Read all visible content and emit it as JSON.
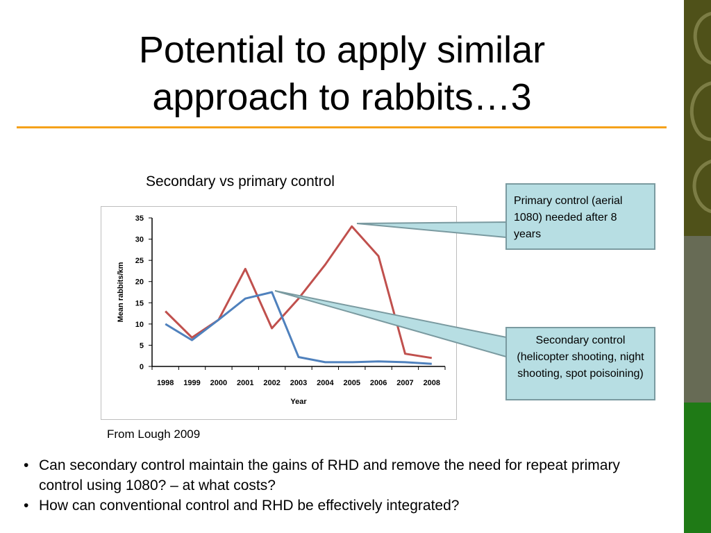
{
  "slide": {
    "title_line1": "Potential to apply similar",
    "title_line2": "approach to rabbits…3",
    "source": "From Lough 2009",
    "colors": {
      "accent_rule": "#f5a11a",
      "callout_fill": "#b7dee3"
    }
  },
  "callouts": {
    "primary": "Primary control (aerial 1080) needed after 8 years",
    "secondary": "Secondary control (helicopter shooting, night shooting, spot poisoining)"
  },
  "bullets": [
    "Can secondary control maintain the gains of RHD and remove the need for repeat primary control using 1080? – at what costs?",
    "How can conventional control and RHD be effectively integrated?"
  ],
  "chart_data": {
    "type": "line",
    "title": "Secondary vs primary control",
    "xlabel": "Year",
    "ylabel": "Mean rabbits/km",
    "categories": [
      "1998",
      "1999",
      "2000",
      "2001",
      "2002",
      "2003",
      "2004",
      "2005",
      "2006",
      "2007",
      "2008"
    ],
    "ylim": [
      0,
      35
    ],
    "yticks": [
      0,
      5,
      10,
      15,
      20,
      25,
      30,
      35
    ],
    "grid": false,
    "legend": "none",
    "series": [
      {
        "color": "#c0504d",
        "values": [
          13,
          6.8,
          11,
          23,
          9,
          16,
          24,
          33,
          26,
          3,
          2
        ]
      },
      {
        "color": "#4f81bd",
        "values": [
          10,
          6.2,
          11,
          16,
          17.5,
          2.2,
          1,
          1,
          1.2,
          1,
          0.6
        ]
      }
    ]
  }
}
